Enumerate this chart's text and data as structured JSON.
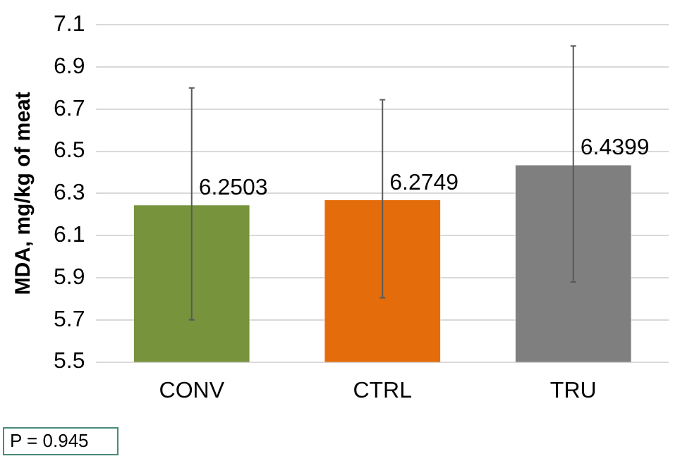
{
  "chart_data": {
    "type": "bar",
    "ylabel": "MDA, mg/kg of meat",
    "categories": [
      "CONV",
      "CTRL",
      "TRU"
    ],
    "values": [
      6.2503,
      6.2749,
      6.4399
    ],
    "colors": [
      "#77933c",
      "#e46c0a",
      "#7f7f7f"
    ],
    "errors": [
      0.55,
      0.47,
      0.56
    ],
    "ylim": [
      5.5,
      7.1
    ],
    "yticks": [
      5.5,
      5.7,
      5.9,
      6.1,
      6.3,
      6.5,
      6.7,
      6.9,
      7.1
    ],
    "grid": "y",
    "legend": false,
    "data_labels": true,
    "annotations": [
      "P = 0.945"
    ]
  }
}
